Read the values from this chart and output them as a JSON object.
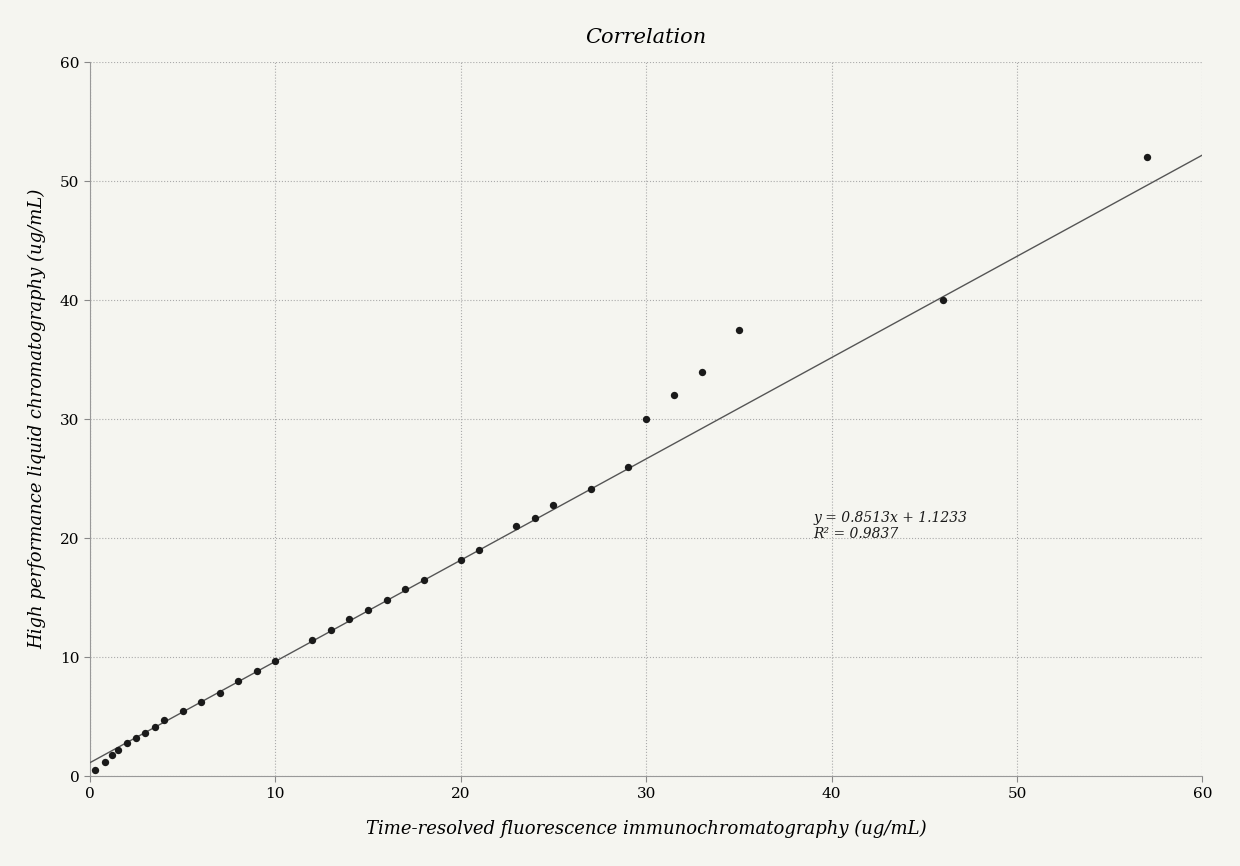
{
  "title": "Correlation",
  "xlabel": "Time-resolved fluorescence immunochromatography (ug/mL)",
  "ylabel": "High performance liquid chromatography (ug/mL)",
  "equation": "y = 0.8513x + 1.1233",
  "r2": "R² = 0.9837",
  "slope": 0.8513,
  "intercept": 1.1233,
  "xlim": [
    0,
    60
  ],
  "ylim": [
    0,
    60
  ],
  "xticks": [
    0,
    10,
    20,
    30,
    40,
    50,
    60
  ],
  "yticks": [
    0,
    10,
    20,
    30,
    40,
    50,
    60
  ],
  "scatter_x": [
    0.3,
    0.8,
    1.2,
    1.5,
    2.0,
    2.5,
    3.0,
    3.5,
    4.0,
    5.0,
    6.0,
    7.0,
    8.0,
    9.0,
    10.0,
    12.0,
    13.0,
    14.0,
    15.0,
    16.0,
    17.0,
    18.0,
    20.0,
    21.0,
    23.0,
    24.0,
    25.0,
    27.0,
    29.0,
    30.0,
    31.5,
    33.0,
    35.0,
    46.0,
    57.0
  ],
  "scatter_y": [
    0.5,
    1.2,
    1.8,
    2.2,
    2.8,
    3.2,
    3.6,
    4.1,
    4.7,
    5.5,
    6.2,
    7.0,
    8.0,
    8.8,
    9.7,
    11.4,
    12.3,
    13.2,
    14.0,
    14.8,
    15.7,
    16.5,
    18.2,
    19.0,
    21.0,
    21.7,
    22.8,
    24.1,
    26.0,
    30.0,
    32.0,
    34.0,
    37.5,
    40.0,
    52.0
  ],
  "dot_color": "#1a1a1a",
  "line_color": "#555555",
  "bg_color": "#f5f5f0",
  "plot_bg_color": "#f5f5f0",
  "grid_color": "#aaaaaa",
  "title_fontsize": 15,
  "label_fontsize": 13,
  "tick_fontsize": 11,
  "annot_fontsize": 10
}
